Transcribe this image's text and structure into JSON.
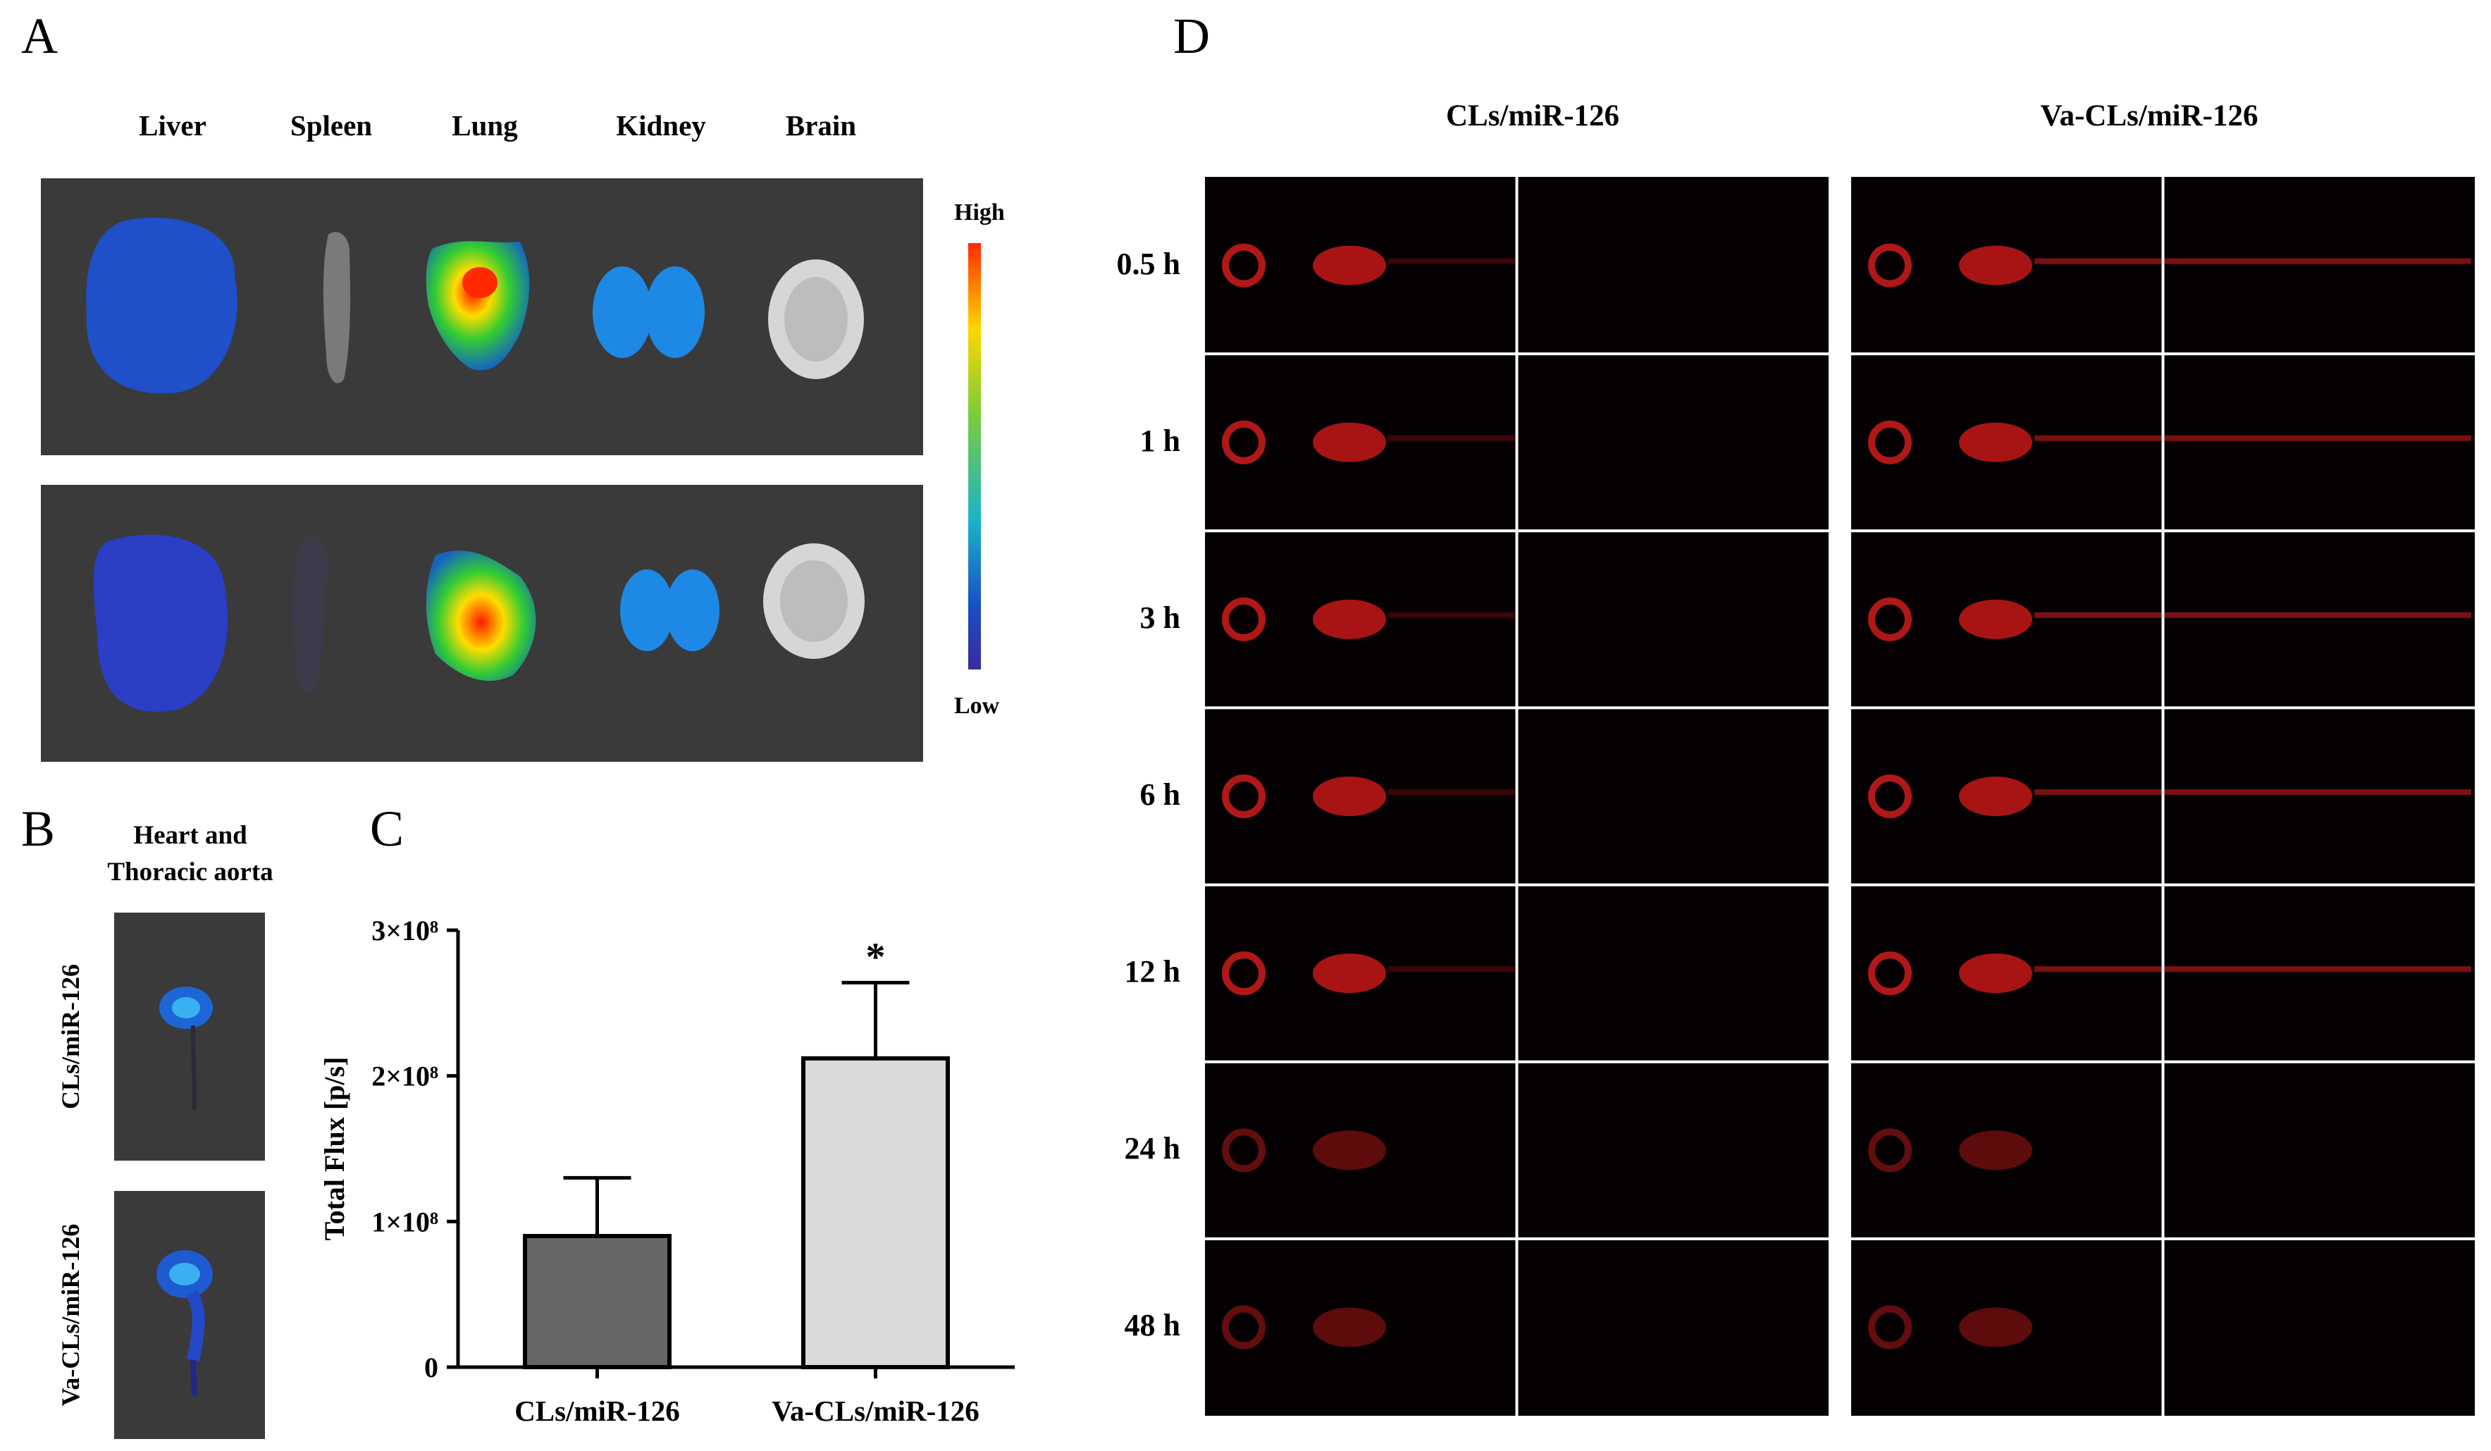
{
  "panels": {
    "a": "A",
    "b": "B",
    "c": "C",
    "d": "D"
  },
  "panel_a": {
    "organs": [
      "Liver",
      "Spleen",
      "Lung",
      "Kidney",
      "Brain"
    ],
    "scale_high": "High",
    "scale_low": "Low"
  },
  "panel_b": {
    "title": "Heart and Thoracic aorta",
    "title_line1": "Heart and",
    "title_line2": "Thoracic aorta",
    "groups": [
      "CLs/miR-126",
      "Va-CLs/miR-126"
    ]
  },
  "chart_data": {
    "type": "bar",
    "categories": [
      "CLs/miR-126",
      "Va-CLs/miR-126"
    ],
    "values": [
      90000000,
      212000000
    ],
    "errors": [
      40000000,
      52000000
    ],
    "colors": [
      "#666666",
      "#d9d9d9"
    ],
    "ylabel": "Total Flux [p/s]",
    "ylim": [
      0,
      300000000
    ],
    "yticks": [
      0,
      100000000,
      200000000,
      300000000
    ],
    "ytick_labels": [
      "0",
      "1×10⁸",
      "2×10⁸",
      "3×10⁸"
    ],
    "significance": [
      "",
      "*"
    ]
  },
  "panel_d": {
    "columns": [
      "CLs/miR-126",
      "Va-CLs/miR-126"
    ],
    "timepoints": [
      "0.5 h",
      "1 h",
      "3 h",
      "6 h",
      "12 h",
      "24 h",
      "48 h"
    ]
  }
}
